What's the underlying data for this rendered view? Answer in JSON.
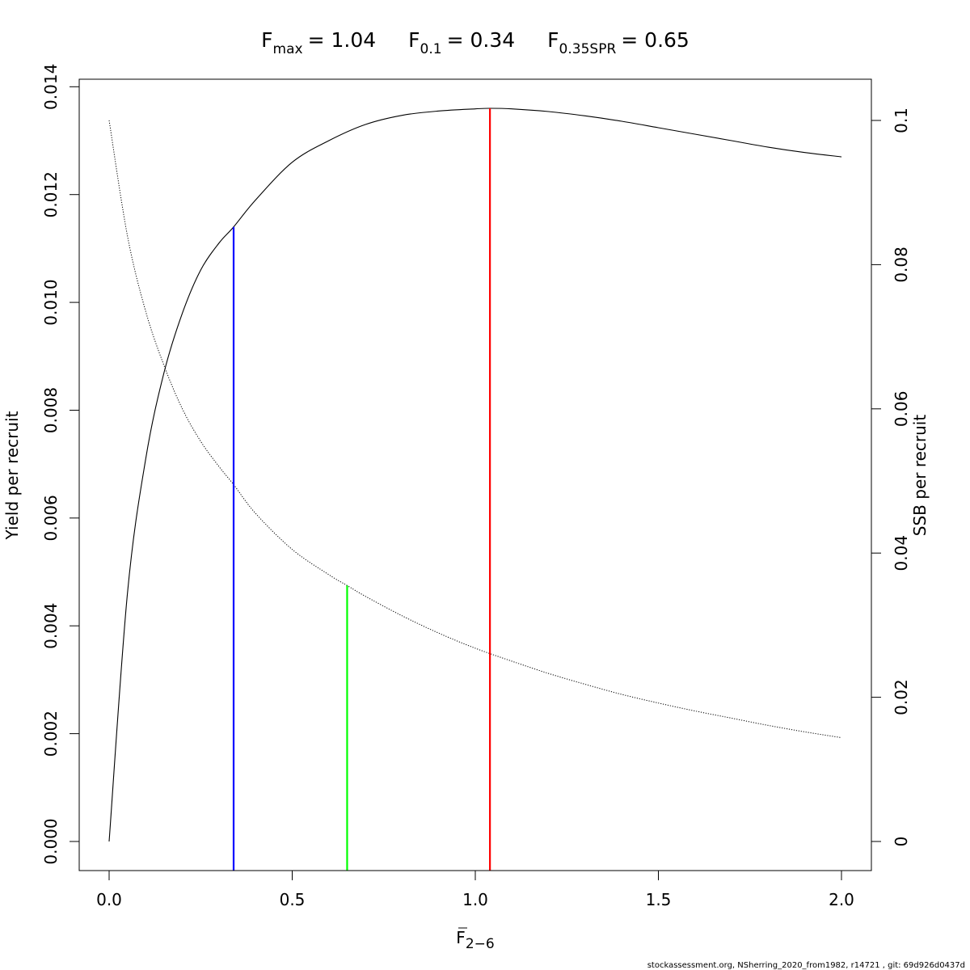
{
  "chart_data": {
    "type": "line",
    "title_parts": [
      {
        "main": "F",
        "sub": "max",
        "eq": "= 1.04"
      },
      {
        "main": "F",
        "sub": "0.1",
        "eq": "= 0.34"
      },
      {
        "main": "F",
        "sub": "0.35SPR",
        "eq": "= 0.65"
      }
    ],
    "xlabel": {
      "main": "F",
      "sub": "2−6"
    },
    "ylabel": "Yield per recruit",
    "ylabel_right": "SSB per recruit",
    "xlim": [
      0,
      2
    ],
    "ylim": [
      0,
      0.0136
    ],
    "ylim_right": [
      0,
      0.1
    ],
    "x_ticks": [
      0,
      0.5,
      1,
      1.5,
      2
    ],
    "x_tick_labels": [
      "0.0",
      "0.5",
      "1.0",
      "1.5",
      "2.0"
    ],
    "y_ticks": [
      0,
      0.002,
      0.004,
      0.006,
      0.008,
      0.01,
      0.012,
      0.014
    ],
    "y_tick_labels": [
      "0.000",
      "0.002",
      "0.004",
      "0.006",
      "0.008",
      "0.010",
      "0.012",
      "0.014"
    ],
    "y_ticks_right": [
      0,
      0.02,
      0.04,
      0.06,
      0.08,
      0.1
    ],
    "y_tick_labels_right": [
      "0",
      "0.02",
      "0.04",
      "0.06",
      "0.08",
      "0.1"
    ],
    "series": [
      {
        "axis": "left",
        "style": "solid",
        "color": "#000000",
        "x": [
          0,
          0.05,
          0.1,
          0.15,
          0.2,
          0.25,
          0.3,
          0.34,
          0.4,
          0.5,
          0.6,
          0.7,
          0.8,
          0.9,
          1.0,
          1.04,
          1.1,
          1.2,
          1.3,
          1.4,
          1.5,
          1.6,
          1.7,
          1.8,
          1.9,
          2.0
        ],
        "values": [
          0,
          0.0046,
          0.0071,
          0.0087,
          0.0098,
          0.0106,
          0.0111,
          0.0114,
          0.0119,
          0.0126,
          0.013,
          0.0133,
          0.01347,
          0.01355,
          0.01359,
          0.0136,
          0.01359,
          0.01354,
          0.01346,
          0.01336,
          0.01324,
          0.01312,
          0.013,
          0.01288,
          0.01278,
          0.0127
        ]
      },
      {
        "axis": "right",
        "style": "dotted",
        "color": "#000000",
        "x": [
          0,
          0.05,
          0.1,
          0.15,
          0.2,
          0.25,
          0.3,
          0.34,
          0.4,
          0.5,
          0.6,
          0.65,
          0.7,
          0.8,
          0.9,
          1.0,
          1.1,
          1.2,
          1.3,
          1.4,
          1.5,
          1.6,
          1.7,
          1.8,
          1.9,
          2.0
        ],
        "values": [
          0.1,
          0.084,
          0.0735,
          0.066,
          0.06,
          0.0555,
          0.052,
          0.0495,
          0.0455,
          0.0405,
          0.037,
          0.0355,
          0.034,
          0.0313,
          0.0289,
          0.0268,
          0.025,
          0.0233,
          0.0218,
          0.0204,
          0.0192,
          0.0181,
          0.0171,
          0.0161,
          0.0152,
          0.0144
        ]
      }
    ],
    "reference_lines": [
      {
        "x": 0.34,
        "top": 0.0114,
        "axis": "left",
        "color": "#0000ff"
      },
      {
        "x": 0.65,
        "top": 0.0355,
        "axis": "right",
        "color": "#00ff00"
      },
      {
        "x": 1.04,
        "top": 0.0136,
        "axis": "left",
        "color": "#ff0000"
      }
    ],
    "grid": false,
    "legend": "none"
  },
  "footer": "stockassessment.org, NSherring_2020_from1982, r14721 , git: 69d926d0437d"
}
